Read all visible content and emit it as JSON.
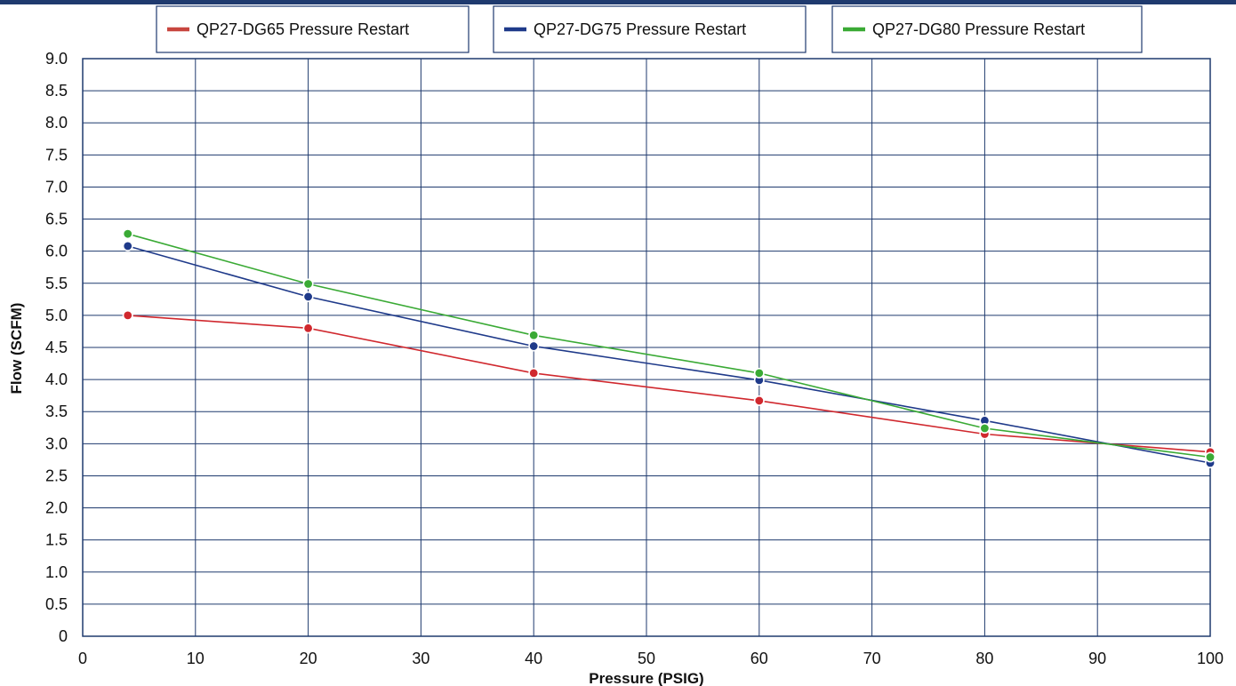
{
  "chart_data": {
    "type": "line",
    "title": "",
    "xlabel": "Pressure (PSIG)",
    "ylabel": "Flow (SCFM)",
    "xlim": [
      0,
      100
    ],
    "ylim": [
      0,
      9.0
    ],
    "x_ticks": [
      "0",
      "10",
      "20",
      "30",
      "40",
      "50",
      "60",
      "70",
      "80",
      "90",
      "100"
    ],
    "y_ticks": [
      "0",
      "0.5",
      "1.0",
      "1.5",
      "2.0",
      "2.5",
      "3.0",
      "3.5",
      "4.0",
      "4.5",
      "5.0",
      "5.5",
      "6.0",
      "6.5",
      "7.0",
      "7.5",
      "8.0",
      "8.5",
      "9.0"
    ],
    "grid": true,
    "legend_position": "top",
    "series": [
      {
        "name": "QP27-DG65 Pressure Restart",
        "color": "#d0282e",
        "legend_color": "#c8463f",
        "x": [
          4,
          20,
          40,
          60,
          80,
          100
        ],
        "y": [
          5.0,
          4.8,
          4.1,
          3.67,
          3.15,
          2.87
        ]
      },
      {
        "name": "QP27-DG75 Pressure Restart",
        "color": "#1f3a8a",
        "legend_color": "#1f3a8a",
        "x": [
          4,
          20,
          40,
          60,
          80,
          100
        ],
        "y": [
          6.08,
          5.29,
          4.52,
          3.99,
          3.36,
          2.7
        ]
      },
      {
        "name": "QP27-DG80 Pressure Restart",
        "color": "#3aaa35",
        "legend_color": "#3aaa35",
        "x": [
          4,
          20,
          40,
          60,
          80,
          100
        ],
        "y": [
          6.27,
          5.49,
          4.69,
          4.1,
          3.24,
          2.79
        ]
      }
    ]
  },
  "colors": {
    "frame": "#1f3a6e",
    "grid": "#1f3a6e",
    "top_rule": "#1f3a6e"
  }
}
